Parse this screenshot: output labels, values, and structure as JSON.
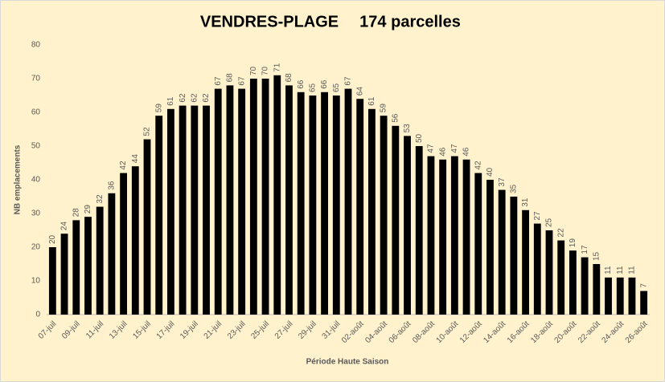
{
  "chart_data": {
    "type": "bar",
    "title": "VENDRES-PLAGE",
    "subtitle": "174 parcelles",
    "x_label": "Période Haute Saison",
    "y_label": "NB emplacements",
    "categories": [
      "07-juil",
      null,
      "09-juil",
      null,
      "11-juil",
      null,
      "13-juil",
      null,
      "15-juil",
      null,
      "17-juil",
      null,
      "19-juil",
      null,
      "21-juil",
      null,
      "23-juil",
      null,
      "25-juil",
      null,
      "27-juil",
      null,
      "29-juil",
      null,
      "31-juil",
      null,
      "02-août",
      null,
      "04-août",
      null,
      "06-août",
      null,
      "08-août",
      null,
      "10-août",
      null,
      "12-août",
      null,
      "14-août",
      null,
      "16-août",
      null,
      "18-août",
      null,
      "20-août",
      null,
      "22-août",
      null,
      "24-août",
      null,
      "26-août"
    ],
    "values": [
      20,
      24,
      28,
      29,
      32,
      36,
      42,
      44,
      52,
      59,
      61,
      62,
      62,
      62,
      67,
      68,
      67,
      70,
      70,
      71,
      68,
      66,
      65,
      66,
      65,
      67,
      64,
      61,
      59,
      56,
      53,
      50,
      47,
      46,
      47,
      46,
      42,
      40,
      37,
      35,
      31,
      27,
      25,
      22,
      19,
      17,
      15,
      11,
      11,
      11,
      7
    ],
    "color": "#000000",
    "ylim": [
      0,
      80
    ],
    "yticks": [
      0,
      10,
      20,
      30,
      40,
      50,
      60,
      70,
      80
    ],
    "grid": false
  }
}
